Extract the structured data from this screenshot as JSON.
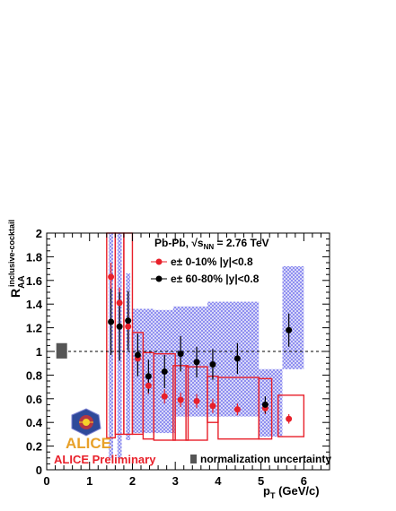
{
  "chart_data": {
    "type": "scatter",
    "xlabel_main": "p",
    "xlabel_sub": "T",
    "xlabel_unit": " (GeV/c)",
    "ylabel_main": "R",
    "ylabel_sub": "AA",
    "ylabel_sup": "inclusive-cocktail",
    "xlim": [
      0,
      6.6
    ],
    "ylim": [
      0,
      2
    ],
    "x_ticks": [
      "0",
      "1",
      "2",
      "3",
      "4",
      "5",
      "6"
    ],
    "y_ticks": [
      "0",
      "0.2",
      "0.4",
      "0.6",
      "0.8",
      "1",
      "1.2",
      "1.4",
      "1.6",
      "1.8",
      "2"
    ],
    "reference_line": 1,
    "legend": {
      "header": "Pb-Pb, √s",
      "header_sub": "NN",
      "header_tail": " = 2.76 TeV",
      "entries": [
        {
          "label": "e± 0-10%  |y|<0.8",
          "color": "#e8202a"
        },
        {
          "label": "e± 60-80%  |y|<0.8",
          "color": "#000000"
        }
      ]
    },
    "preliminary_label": "ALICE Preliminary",
    "logo_text": "ALICE",
    "norm_label": "normalization uncertainty",
    "norm_box": {
      "x": 0.35,
      "low": 0.94,
      "high": 1.07
    },
    "series": [
      {
        "name": "e± 0-10%  |y|<0.8",
        "color": "#e8202a",
        "points": [
          {
            "x": 1.5,
            "y": 1.63,
            "err": 0.12,
            "sys": [
              0.27,
              2.0
            ],
            "xl": 1.4,
            "xh": 1.6
          },
          {
            "x": 1.7,
            "y": 1.41,
            "err": 0.13,
            "sys": [
              0.3,
              2.0
            ],
            "xl": 1.6,
            "xh": 1.8
          },
          {
            "x": 1.9,
            "y": 1.21,
            "err": 0.14,
            "sys": [
              0.3,
              2.0
            ],
            "xl": 1.8,
            "xh": 2.0
          },
          {
            "x": 2.125,
            "y": 0.94,
            "err": 0.09,
            "sys": [
              0.3,
              1.16
            ],
            "xl": 2.0,
            "xh": 2.25
          },
          {
            "x": 2.375,
            "y": 0.71,
            "err": 0.07,
            "sys": [
              0.26,
              0.99
            ],
            "xl": 2.25,
            "xh": 2.5
          },
          {
            "x": 2.75,
            "y": 0.62,
            "err": 0.06,
            "sys": [
              0.25,
              0.98
            ],
            "xl": 2.5,
            "xh": 3.0
          },
          {
            "x": 3.125,
            "y": 0.59,
            "err": 0.06,
            "sys": [
              0.25,
              0.88
            ],
            "xl": 2.95,
            "xh": 3.3
          },
          {
            "x": 3.5,
            "y": 0.58,
            "err": 0.06,
            "sys": [
              0.25,
              0.87
            ],
            "xl": 3.25,
            "xh": 3.75
          },
          {
            "x": 3.875,
            "y": 0.54,
            "err": 0.06,
            "sys": [
              0.4,
              0.79
            ],
            "xl": 3.75,
            "xh": 4.0
          },
          {
            "x": 4.45,
            "y": 0.51,
            "err": 0.05,
            "sys": [
              0.26,
              0.78
            ],
            "xl": 4.0,
            "xh": 4.95
          },
          {
            "x": 5.1,
            "y": 0.52,
            "err": 0.05,
            "sys": [
              0.26,
              0.77
            ],
            "xl": 4.95,
            "xh": 5.25
          },
          {
            "x": 5.65,
            "y": 0.43,
            "err": 0.04,
            "sys": [
              0.28,
              0.63
            ],
            "xl": 5.4,
            "xh": 6.0
          }
        ]
      },
      {
        "name": "e± 60-80%  |y|<0.8",
        "color": "#000000",
        "points": [
          {
            "x": 1.5,
            "y": 1.25,
            "err": 0.28,
            "sys": [
              0.1,
              2.0
            ],
            "xl": 1.45,
            "xh": 1.55
          },
          {
            "x": 1.7,
            "y": 1.21,
            "err": 0.29,
            "sys": [
              0.1,
              2.0
            ],
            "xl": 1.65,
            "xh": 1.75
          },
          {
            "x": 1.9,
            "y": 1.26,
            "err": 0.25,
            "sys": [
              0.25,
              1.66
            ],
            "xl": 1.85,
            "xh": 1.95
          },
          {
            "x": 2.125,
            "y": 0.97,
            "err": 0.18,
            "sys": [
              0.31,
              1.36
            ],
            "xl": 2.0,
            "xh": 2.25
          },
          {
            "x": 2.375,
            "y": 0.79,
            "err": 0.14,
            "sys": [
              0.31,
              1.36
            ],
            "xl": 2.25,
            "xh": 2.5
          },
          {
            "x": 2.75,
            "y": 0.83,
            "err": 0.14,
            "sys": [
              0.31,
              1.35
            ],
            "xl": 2.5,
            "xh": 3.0
          },
          {
            "x": 3.125,
            "y": 0.98,
            "err": 0.15,
            "sys": [
              0.45,
              1.38
            ],
            "xl": 2.95,
            "xh": 3.3
          },
          {
            "x": 3.5,
            "y": 0.91,
            "err": 0.13,
            "sys": [
              0.45,
              1.38
            ],
            "xl": 3.25,
            "xh": 3.75
          },
          {
            "x": 3.875,
            "y": 0.89,
            "err": 0.13,
            "sys": [
              0.45,
              1.42
            ],
            "xl": 3.75,
            "xh": 4.0
          },
          {
            "x": 4.45,
            "y": 0.94,
            "err": 0.13,
            "sys": [
              0.45,
              1.42
            ],
            "xl": 4.0,
            "xh": 4.95
          },
          {
            "x": 5.1,
            "y": 0.55,
            "err": 0.07,
            "sys": [
              0.28,
              0.85
            ],
            "xl": 4.95,
            "xh": 5.5
          },
          {
            "x": 5.65,
            "y": 1.18,
            "err": 0.14,
            "sys": [
              0.85,
              1.72
            ],
            "xl": 5.5,
            "xh": 6.0
          }
        ]
      }
    ]
  }
}
